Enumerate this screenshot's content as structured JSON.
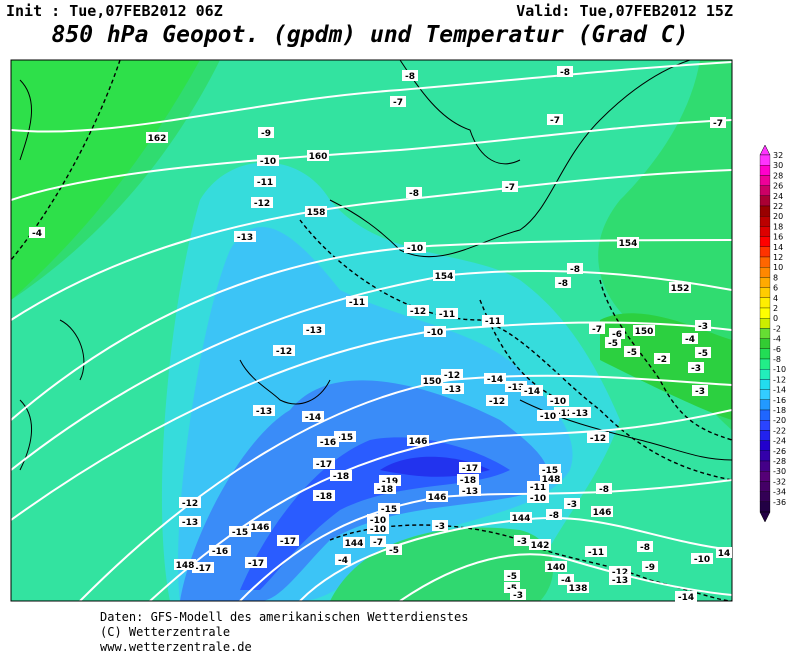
{
  "header": {
    "init": "Init : Tue,07FEB2012 06Z",
    "valid": "Valid: Tue,07FEB2012 15Z",
    "title": "850 hPa Geopot. (gpdm) und Temperatur (Grad C)"
  },
  "map": {
    "labels": [
      "-8",
      "-8",
      "-7",
      "-7",
      "-7",
      "-9",
      "-10",
      "-11",
      "-7",
      "-12",
      "-13",
      "-4",
      "-10",
      "-8",
      "-8",
      "-11",
      "-12",
      "-11",
      "-11",
      "-10",
      "-13",
      "-12",
      "-7",
      "-6",
      "-5",
      "-3",
      "-4",
      "-5",
      "-2",
      "-5",
      "-3",
      "-12",
      "-14",
      "-13",
      "-13",
      "-14",
      "-3",
      "-12",
      "-10",
      "-13",
      "-14",
      "-12",
      "-13",
      "-10",
      "-12",
      "-15",
      "-16",
      "-17",
      "-17",
      "-15",
      "-18",
      "-18",
      "-19",
      "-18",
      "-13",
      "-11",
      "-10",
      "-8",
      "-18",
      "-12",
      "-15",
      "-13",
      "-10",
      "-10",
      "-8",
      "-3",
      "-3",
      "-15",
      "-17",
      "-7",
      "-5",
      "-3",
      "-16",
      "-11",
      "-8",
      "-10",
      "-4",
      "-17",
      "-17",
      "-9",
      "-12",
      "-13",
      "-5",
      "-5",
      "-4",
      "-14",
      "-3",
      "-8",
      "162",
      "160",
      "158",
      "154",
      "154",
      "152",
      "150",
      "150",
      "146",
      "146",
      "148",
      "146",
      "144",
      "146",
      "144",
      "142",
      "140",
      "138",
      "148",
      "14"
    ]
  },
  "colorbar": {
    "labels": [
      32,
      30,
      28,
      26,
      24,
      22,
      20,
      18,
      16,
      14,
      12,
      10,
      8,
      6,
      4,
      2,
      0,
      -2,
      -4,
      -6,
      -8,
      -10,
      -12,
      -14,
      -16,
      -18,
      -20,
      -22,
      -24,
      -26,
      -28,
      -30,
      -32,
      -34,
      -36
    ]
  },
  "footer": {
    "lines": [
      "Daten: GFS-Modell des amerikanischen Wetterdienstes",
      "(C) Wetterzentrale",
      "www.wetterzentrale.de"
    ]
  }
}
